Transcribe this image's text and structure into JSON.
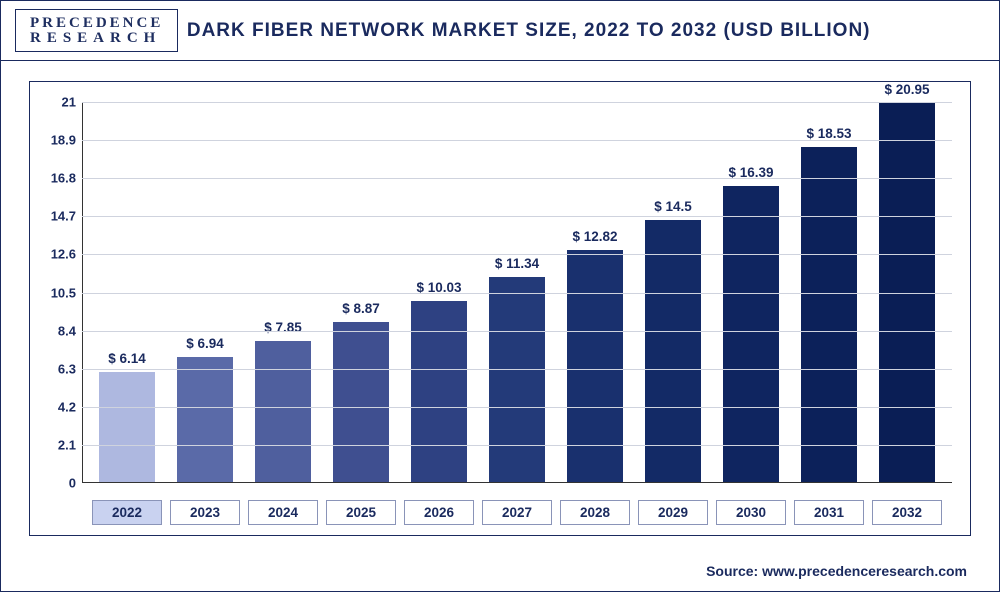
{
  "logo": {
    "top": "PRECEDENCE",
    "bottom": "RESEARCH"
  },
  "title": "DARK FIBER NETWORK MARKET SIZE, 2022 TO 2032 (USD BILLION)",
  "source": "Source: www.precedenceresearch.com",
  "chart": {
    "type": "bar",
    "ylim": [
      0,
      21
    ],
    "yticks": [
      0,
      2.1,
      4.2,
      6.3,
      8.4,
      10.5,
      12.6,
      14.7,
      16.8,
      18.9,
      21
    ],
    "grid_color": "#cfd3de",
    "axis_color": "#333333",
    "background_color": "#ffffff",
    "bar_width": 0.72,
    "label_fontsize": 13.5,
    "tick_fontsize": 13,
    "title_fontsize": 19,
    "text_color": "#1a2a5e",
    "categories": [
      "2022",
      "2023",
      "2024",
      "2025",
      "2026",
      "2027",
      "2028",
      "2029",
      "2030",
      "2031",
      "2032"
    ],
    "values": [
      6.14,
      6.94,
      7.85,
      8.87,
      10.03,
      11.34,
      12.82,
      14.5,
      16.39,
      18.53,
      20.95
    ],
    "value_labels": [
      "$ 6.14",
      "$ 6.94",
      "$ 7.85",
      "$ 8.87",
      "$ 10.03",
      "$ 11.34",
      "$ 12.82",
      "$ 14.5",
      "$ 16.39",
      "$ 18.53",
      "$ 20.95"
    ],
    "bar_colors": [
      "#aeb8e0",
      "#5a6aa8",
      "#4f5f9e",
      "#3f4f90",
      "#2e4182",
      "#233a79",
      "#19306e",
      "#132a66",
      "#0f2560",
      "#0c215a",
      "#0a1e55"
    ],
    "highlight_category_index": 0,
    "x_label_highlight_bg": "#c9d2f0"
  }
}
